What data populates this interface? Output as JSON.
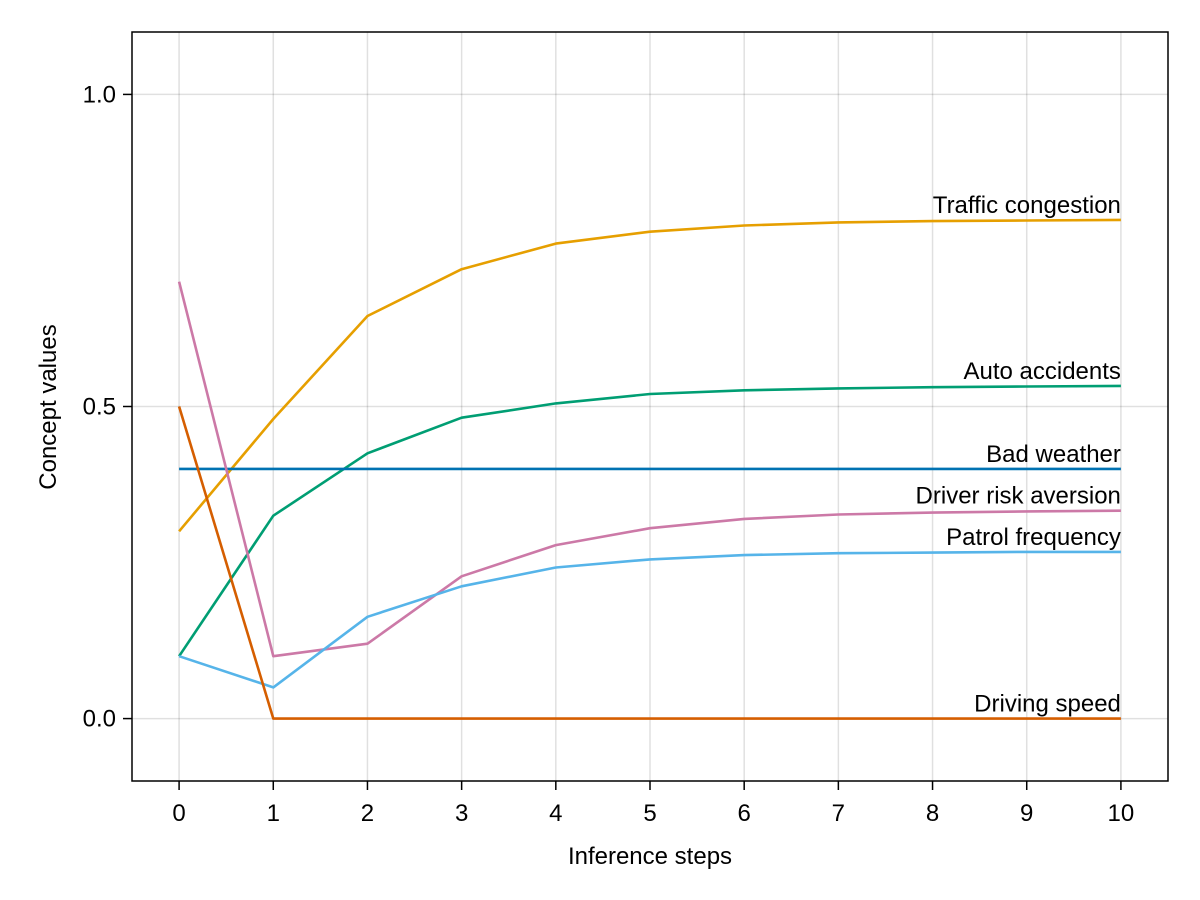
{
  "chart_data": {
    "type": "line",
    "title": "",
    "xlabel": "Inference steps",
    "ylabel": "Concept values",
    "x": [
      0,
      1,
      2,
      3,
      4,
      5,
      6,
      7,
      8,
      9,
      10
    ],
    "xticks": [
      0,
      1,
      2,
      3,
      4,
      5,
      6,
      7,
      8,
      9,
      10
    ],
    "xtick_labels": [
      "0",
      "1",
      "2",
      "3",
      "4",
      "5",
      "6",
      "7",
      "8",
      "9",
      "10"
    ],
    "yticks": [
      0.0,
      0.5,
      1.0
    ],
    "ytick_labels": [
      "0.0",
      "0.5",
      "1.0"
    ],
    "xlim": [
      -0.5,
      10.5
    ],
    "ylim": [
      -0.1,
      1.1
    ],
    "grid": true,
    "legend": "inline labels at line ends",
    "series": [
      {
        "name": "Traffic congestion",
        "color": "#E69F00",
        "values": [
          0.3,
          0.48,
          0.645,
          0.72,
          0.761,
          0.78,
          0.79,
          0.795,
          0.797,
          0.798,
          0.799
        ]
      },
      {
        "name": "Auto accidents",
        "color": "#009E73",
        "values": [
          0.1,
          0.325,
          0.425,
          0.482,
          0.505,
          0.52,
          0.526,
          0.529,
          0.531,
          0.532,
          0.533
        ]
      },
      {
        "name": "Bad weather",
        "color": "#0072B2",
        "values": [
          0.4,
          0.4,
          0.4,
          0.4,
          0.4,
          0.4,
          0.4,
          0.4,
          0.4,
          0.4,
          0.4
        ]
      },
      {
        "name": "Driver risk aversion",
        "color": "#CC79A7",
        "values": [
          0.7,
          0.1,
          0.12,
          0.228,
          0.278,
          0.305,
          0.32,
          0.327,
          0.33,
          0.332,
          0.333
        ]
      },
      {
        "name": "Patrol frequency",
        "color": "#56B4E9",
        "values": [
          0.1,
          0.05,
          0.163,
          0.212,
          0.242,
          0.255,
          0.262,
          0.265,
          0.266,
          0.267,
          0.267
        ]
      },
      {
        "name": "Driving speed",
        "color": "#D55E00",
        "values": [
          0.5,
          0.0,
          0.0,
          0.0,
          0.0,
          0.0,
          0.0,
          0.0,
          0.0,
          0.0,
          0.0
        ]
      }
    ]
  }
}
